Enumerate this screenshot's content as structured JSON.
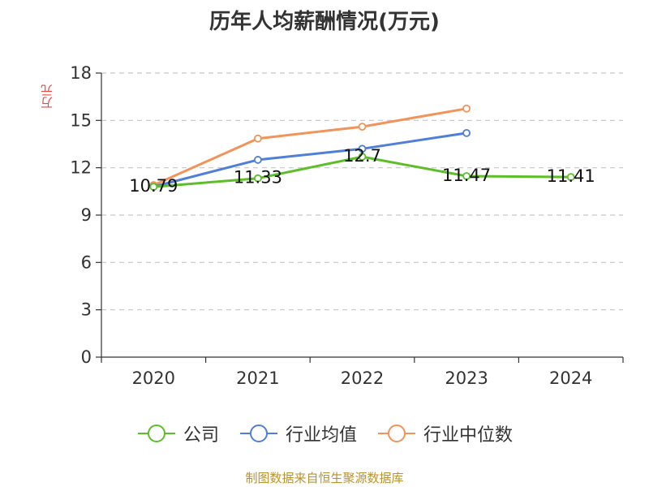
{
  "page": {
    "title": "历年人均薪酬情况(万元)",
    "y_unit": "万元",
    "source": "制图数据来自恒生聚源数据库"
  },
  "chart_data": {
    "type": "line",
    "title": "历年人均薪酬情况(万元)",
    "ylabel": "万元",
    "xlabel": "",
    "ylim": [
      0,
      18
    ],
    "yticks": [
      0,
      3,
      6,
      9,
      12,
      15,
      18
    ],
    "categories": [
      "2020",
      "2021",
      "2022",
      "2023",
      "2024"
    ],
    "grid": true,
    "legend_position": "bottom",
    "series": [
      {
        "name": "公司",
        "color": "#5cbf2a",
        "values": [
          10.79,
          11.33,
          12.7,
          11.47,
          11.41
        ],
        "labels": [
          "10.79",
          "11.33",
          "12.7",
          "11.47",
          "11.41"
        ]
      },
      {
        "name": "行业均值",
        "color": "#4f7fd9",
        "values": [
          10.8,
          12.5,
          13.2,
          14.2,
          null
        ]
      },
      {
        "name": "行业中位数",
        "color": "#f2935a",
        "values": [
          10.9,
          13.85,
          14.6,
          15.75,
          null
        ]
      }
    ]
  },
  "colors": {
    "axis": "#333333",
    "grid": "#c8c8c8",
    "title": "#333333",
    "unit": "#e8473c",
    "source": "#b8922e"
  }
}
